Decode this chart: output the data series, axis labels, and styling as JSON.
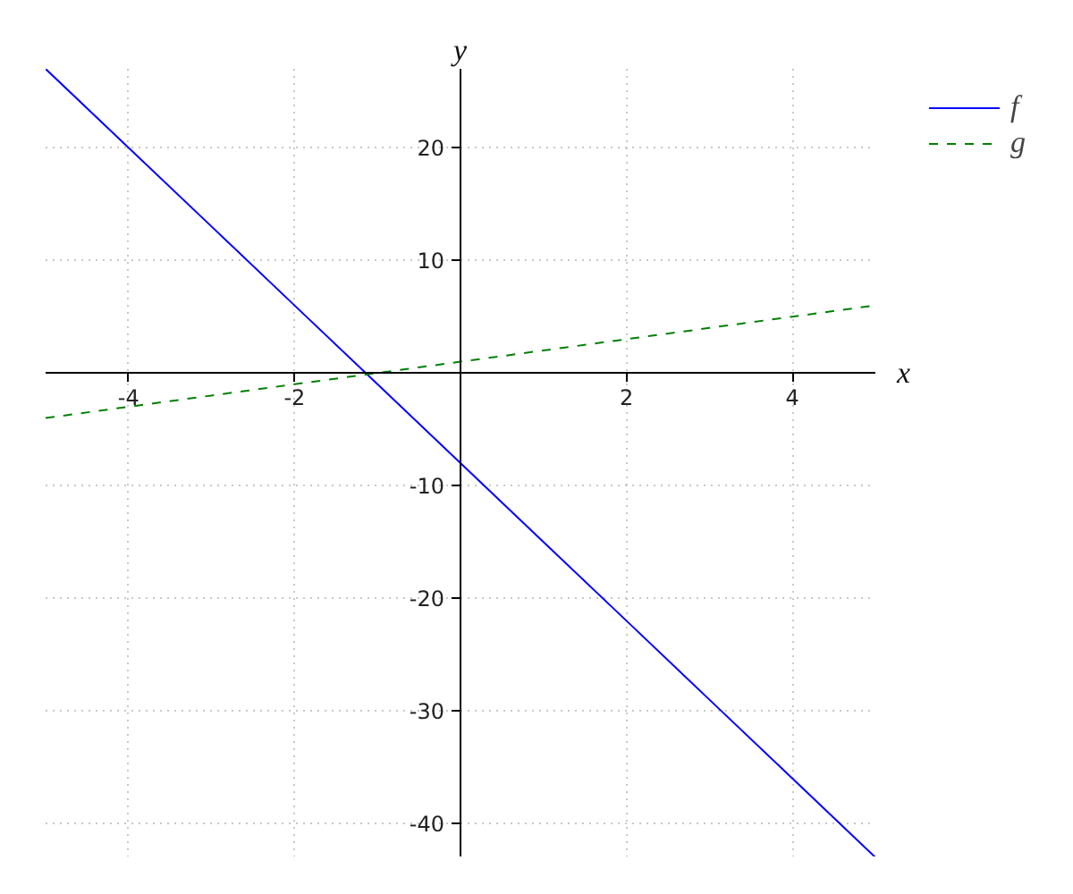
{
  "chart_data": {
    "type": "line",
    "xlabel": "x",
    "ylabel": "y",
    "xlim": [
      -5,
      5
    ],
    "ylim": [
      -43,
      27
    ],
    "xticks": [
      -4,
      -2,
      2,
      4
    ],
    "yticks": [
      -40,
      -30,
      -20,
      -10,
      10,
      20
    ],
    "grid": true,
    "legend": "top right",
    "x": [
      -5,
      -4,
      -3,
      -2,
      -1,
      0,
      1,
      2,
      3,
      4,
      5
    ],
    "series": [
      {
        "name": "f",
        "color": "#0000ff",
        "line_style": "solid",
        "values": [
          27,
          20,
          13,
          6,
          -1,
          -8,
          -15,
          -22,
          -29,
          -36,
          -43
        ]
      },
      {
        "name": "g",
        "color": "#008000",
        "line_style": "dashed",
        "values": [
          -4,
          -3,
          -2,
          -1,
          0,
          1,
          2,
          3,
          4,
          5,
          6
        ]
      }
    ]
  }
}
